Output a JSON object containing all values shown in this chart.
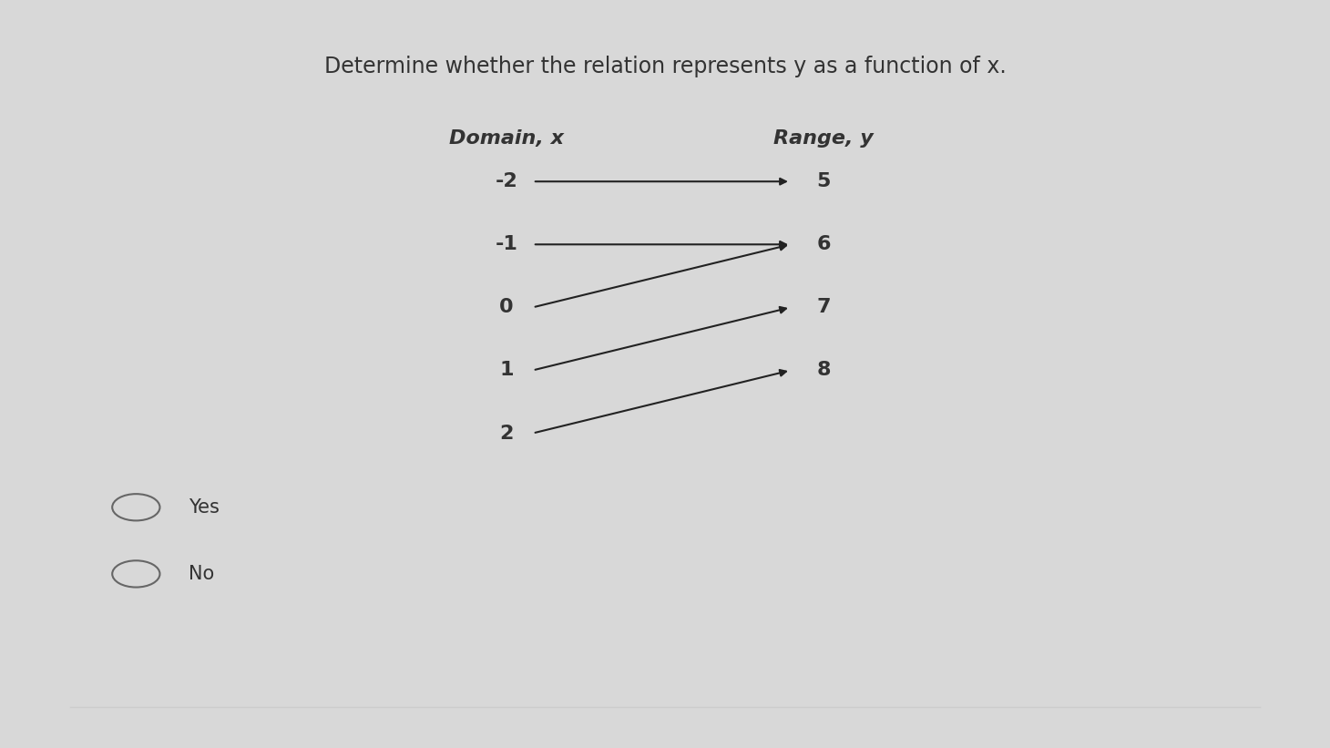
{
  "title": "Determine whether the relation represents y as a function of x.",
  "title_fontsize": 17,
  "title_color": "#333333",
  "bg_color": "#d8d8d8",
  "domain_label": "Domain, x",
  "range_label": "Range, y",
  "domain_values": [
    "-2",
    "-1",
    "0",
    "1",
    "2"
  ],
  "range_values": [
    "5",
    "6",
    "7",
    "8"
  ],
  "arrows": [
    [
      "-2",
      "5"
    ],
    [
      "-1",
      "6"
    ],
    [
      "0",
      "6"
    ],
    [
      "1",
      "7"
    ],
    [
      "2",
      "8"
    ]
  ],
  "options": [
    "Yes",
    "No"
  ],
  "option_fontsize": 15,
  "arrow_color": "#222222",
  "label_fontsize": 16,
  "header_fontsize": 16
}
